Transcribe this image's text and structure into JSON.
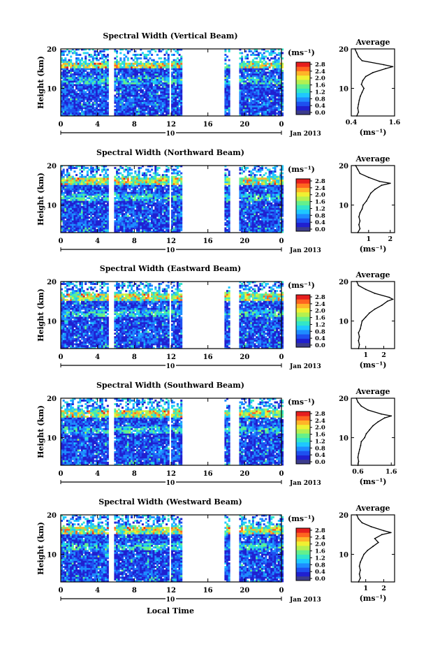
{
  "figure": {
    "xlabel": "Local Time",
    "date_label": "Jan 2013",
    "colorbar_unit": "(ms⁻¹)",
    "colorbar_ticks": [
      "0.0",
      "0.4",
      "0.8",
      "1.2",
      "1.6",
      "2.0",
      "2.4",
      "2.8"
    ],
    "colorbar_colors": [
      "#3c3c8c",
      "#2020d0",
      "#1e50f0",
      "#1e8cff",
      "#1ec8ff",
      "#32e6c8",
      "#64f08c",
      "#b4f050",
      "#f0f032",
      "#ffb428",
      "#ff6420",
      "#e61e1e"
    ],
    "average_title": "Average",
    "average_xlabel": "(ms⁻¹)"
  },
  "chart_data": [
    {
      "type": "heatmap",
      "title": "Spectral Width (Vertical Beam)",
      "ylabel": "Height (km)",
      "x_ticks": [
        "0",
        "4",
        "8",
        "12",
        "16",
        "20",
        "0"
      ],
      "x_range": [
        0,
        24
      ],
      "mid_tick": "10",
      "y_ticks": [
        "10",
        "20"
      ],
      "y_range": [
        3,
        20
      ],
      "colorbar_range": [
        0.0,
        2.8
      ],
      "data_gaps_hours": [
        [
          5.2,
          5.8
        ],
        [
          11.8,
          12.0
        ],
        [
          13.2,
          17.8
        ],
        [
          18.3,
          19.4
        ]
      ],
      "high_band_km": [
        15.0,
        16.5
      ],
      "average_profile": {
        "x_ticks": [
          "0.4",
          "1.6"
        ],
        "xlim": [
          0.4,
          1.6
        ],
        "height": [
          3,
          4,
          5,
          6,
          7,
          8,
          9,
          10,
          11,
          12,
          13,
          14,
          15,
          15.5,
          16,
          17,
          18,
          19,
          20
        ],
        "value": [
          0.55,
          0.6,
          0.58,
          0.6,
          0.62,
          0.65,
          0.7,
          0.75,
          0.68,
          0.72,
          0.8,
          1.0,
          1.35,
          1.55,
          1.3,
          0.7,
          0.6,
          0.55,
          0.5
        ]
      }
    },
    {
      "type": "heatmap",
      "title": "Spectral Width (Northward Beam)",
      "ylabel": "Height (km)",
      "x_ticks": [
        "0",
        "4",
        "8",
        "12",
        "16",
        "20",
        "0"
      ],
      "x_range": [
        0,
        24
      ],
      "mid_tick": "10",
      "y_ticks": [
        "10",
        "20"
      ],
      "y_range": [
        3,
        20
      ],
      "colorbar_range": [
        0.0,
        2.8
      ],
      "data_gaps_hours": [
        [
          5.2,
          5.8
        ],
        [
          11.8,
          12.0
        ],
        [
          13.2,
          17.8
        ],
        [
          18.3,
          19.4
        ]
      ],
      "high_band_km": [
        15.0,
        17.0
      ],
      "average_profile": {
        "x_ticks": [
          "1",
          "2"
        ],
        "xlim": [
          0.2,
          2.2
        ],
        "height": [
          3,
          4,
          5,
          6,
          7,
          8,
          9,
          10,
          11,
          12,
          13,
          14,
          15,
          15.5,
          16,
          17,
          18,
          19,
          20
        ],
        "value": [
          0.5,
          0.6,
          0.55,
          0.6,
          0.55,
          0.6,
          0.7,
          0.75,
          0.9,
          1.0,
          1.1,
          1.3,
          1.6,
          2.0,
          1.5,
          1.0,
          0.6,
          0.5,
          0.4
        ]
      }
    },
    {
      "type": "heatmap",
      "title": "Spectral Width (Eastward Beam)",
      "ylabel": "Height (km)",
      "x_ticks": [
        "0",
        "4",
        "8",
        "12",
        "16",
        "20",
        "0"
      ],
      "x_range": [
        0,
        24
      ],
      "mid_tick": "10",
      "y_ticks": [
        "10",
        "20"
      ],
      "y_range": [
        3,
        20
      ],
      "colorbar_range": [
        0.0,
        2.8
      ],
      "data_gaps_hours": [
        [
          5.2,
          5.8
        ],
        [
          11.8,
          12.0
        ],
        [
          13.2,
          17.8
        ],
        [
          18.3,
          19.4
        ]
      ],
      "high_band_km": [
        15.0,
        17.0
      ],
      "average_profile": {
        "x_ticks": [
          "1",
          "2"
        ],
        "xlim": [
          0.2,
          2.6
        ],
        "height": [
          3,
          4,
          5,
          6,
          7,
          8,
          9,
          10,
          11,
          12,
          13,
          14,
          15,
          15.5,
          16,
          17,
          18,
          19,
          20
        ],
        "value": [
          0.6,
          0.65,
          0.6,
          0.65,
          0.6,
          0.7,
          0.75,
          0.8,
          1.0,
          1.2,
          1.5,
          1.9,
          2.2,
          2.5,
          2.3,
          1.5,
          1.0,
          0.6,
          0.5
        ]
      }
    },
    {
      "type": "heatmap",
      "title": "Spectral Width (Southward Beam)",
      "ylabel": "Height (km)",
      "x_ticks": [
        "0",
        "4",
        "8",
        "12",
        "16",
        "20",
        "0"
      ],
      "x_range": [
        0,
        24
      ],
      "mid_tick": "10",
      "y_ticks": [
        "10",
        "20"
      ],
      "y_range": [
        3,
        20
      ],
      "colorbar_range": [
        0.0,
        2.8
      ],
      "data_gaps_hours": [
        [
          5.2,
          5.8
        ],
        [
          11.8,
          12.0
        ],
        [
          13.2,
          17.8
        ],
        [
          18.3,
          19.4
        ]
      ],
      "high_band_km": [
        15.0,
        17.0
      ],
      "average_profile": {
        "x_ticks": [
          "0.6",
          "1.6"
        ],
        "xlim": [
          0.4,
          1.7
        ],
        "height": [
          3,
          4,
          5,
          6,
          7,
          8,
          9,
          10,
          11,
          12,
          13,
          14,
          15,
          15.5,
          16,
          17,
          18,
          19,
          20
        ],
        "value": [
          0.6,
          0.62,
          0.6,
          0.62,
          0.65,
          0.68,
          0.7,
          0.8,
          0.85,
          0.95,
          1.05,
          1.2,
          1.4,
          1.6,
          1.3,
          0.9,
          0.7,
          0.6,
          0.55
        ]
      }
    },
    {
      "type": "heatmap",
      "title": "Spectral Width (Westward Beam)",
      "ylabel": "Height (km)",
      "x_ticks": [
        "0",
        "4",
        "8",
        "12",
        "16",
        "20",
        "0"
      ],
      "x_range": [
        0,
        24
      ],
      "mid_tick": "10",
      "y_ticks": [
        "10",
        "20"
      ],
      "y_range": [
        3,
        20
      ],
      "colorbar_range": [
        0.0,
        2.8
      ],
      "data_gaps_hours": [
        [
          5.2,
          5.8
        ],
        [
          11.8,
          12.0
        ],
        [
          13.2,
          17.8
        ],
        [
          18.3,
          19.4
        ]
      ],
      "high_band_km": [
        15.0,
        17.0
      ],
      "average_profile": {
        "x_ticks": [
          "1",
          "2"
        ],
        "xlim": [
          0.2,
          2.6
        ],
        "height": [
          3,
          4,
          5,
          6,
          7,
          8,
          9,
          10,
          11,
          12,
          13,
          14,
          15,
          15.5,
          16,
          17,
          18,
          19,
          20
        ],
        "value": [
          0.6,
          0.7,
          0.65,
          0.7,
          0.65,
          0.7,
          0.8,
          0.9,
          1.1,
          1.4,
          1.7,
          1.5,
          1.9,
          2.4,
          2.0,
          1.3,
          0.8,
          0.6,
          0.5
        ]
      }
    }
  ]
}
